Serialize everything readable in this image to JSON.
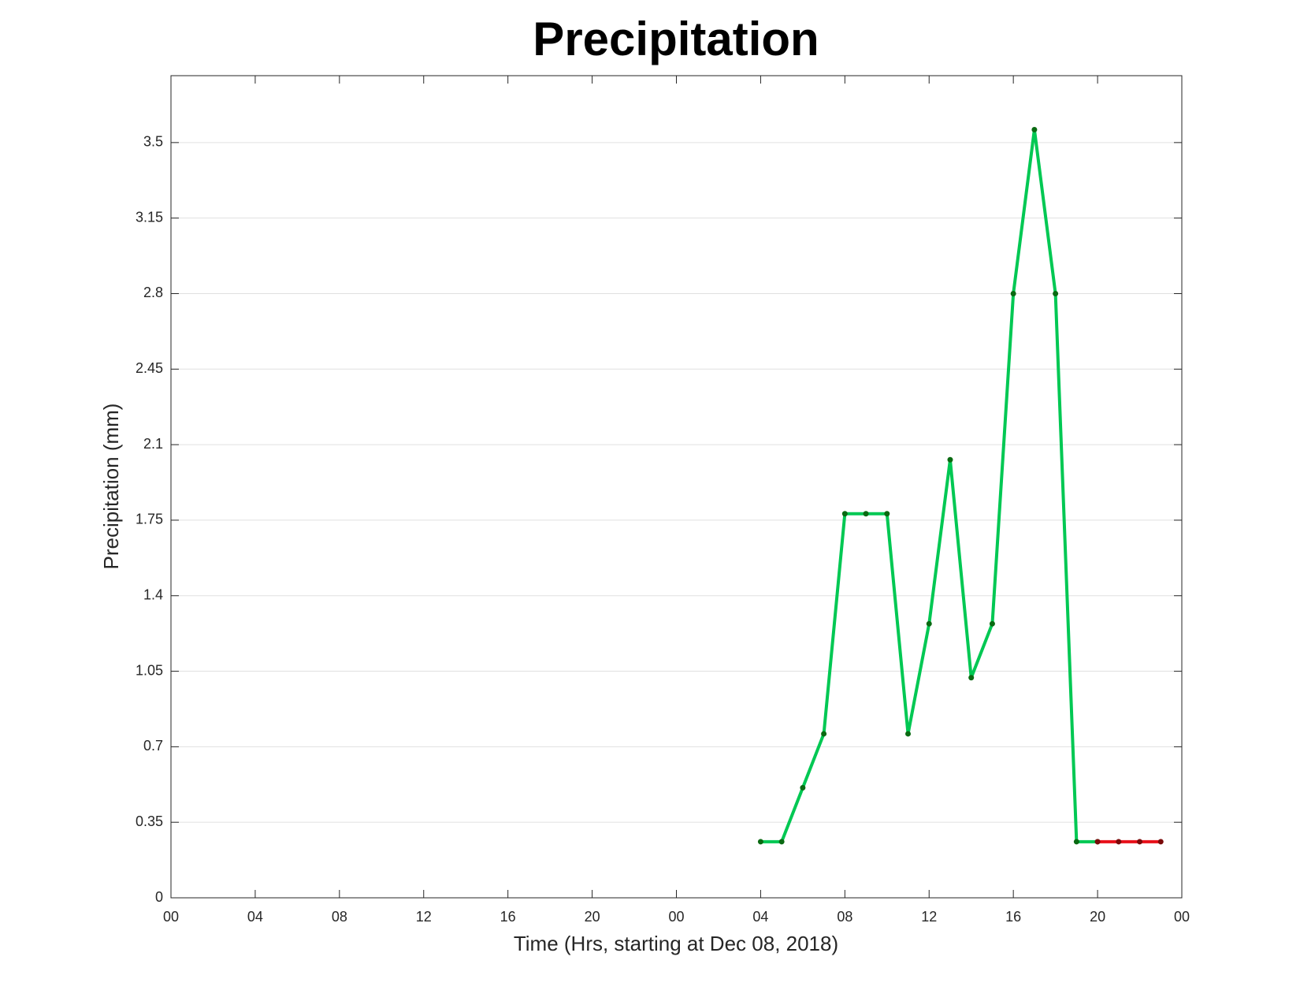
{
  "chart_data": {
    "type": "line",
    "title": "Precipitation",
    "xlabel": "Time (Hrs, starting at Dec 08, 2018)",
    "ylabel": "Precipitation (mm)",
    "x": [
      28,
      29,
      30,
      31,
      32,
      33,
      34,
      35,
      36,
      37,
      38,
      39,
      40,
      41,
      42,
      43,
      44,
      45,
      46,
      47
    ],
    "series": [
      {
        "color": "#00c853",
        "marker_color": "#0a6a12",
        "values": [
          0.26,
          0.26,
          0.51,
          0.76,
          1.78,
          1.78,
          1.78,
          0.76,
          1.27,
          2.03,
          1.02,
          1.27,
          2.8,
          3.56,
          2.8,
          0.26,
          0.26,
          null,
          null,
          null
        ]
      },
      {
        "color": "#e8101a",
        "marker_color": "#7a0a0a",
        "values": [
          null,
          null,
          null,
          null,
          null,
          null,
          null,
          null,
          null,
          null,
          null,
          null,
          null,
          null,
          null,
          null,
          0.26,
          0.26,
          0.26,
          0.26
        ]
      }
    ],
    "xlim": [
      0,
      48
    ],
    "xticks": [
      {
        "value": 0,
        "label": "00"
      },
      {
        "value": 4,
        "label": "04"
      },
      {
        "value": 8,
        "label": "08"
      },
      12,
      16,
      20,
      {
        "value": 24,
        "label": "00"
      },
      {
        "value": 28,
        "label": "04"
      },
      {
        "value": 32,
        "label": "08"
      },
      {
        "value": 36,
        "label": "12"
      },
      {
        "value": 40,
        "label": "16"
      },
      {
        "value": 44,
        "label": "20"
      },
      {
        "value": 48,
        "label": "00"
      }
    ],
    "ylim": [
      0,
      3.81
    ],
    "yticks": [
      0,
      0.35,
      0.7,
      1.05,
      1.4,
      1.75,
      2.1,
      2.45,
      2.8,
      3.15,
      3.5
    ],
    "grid": "y"
  }
}
